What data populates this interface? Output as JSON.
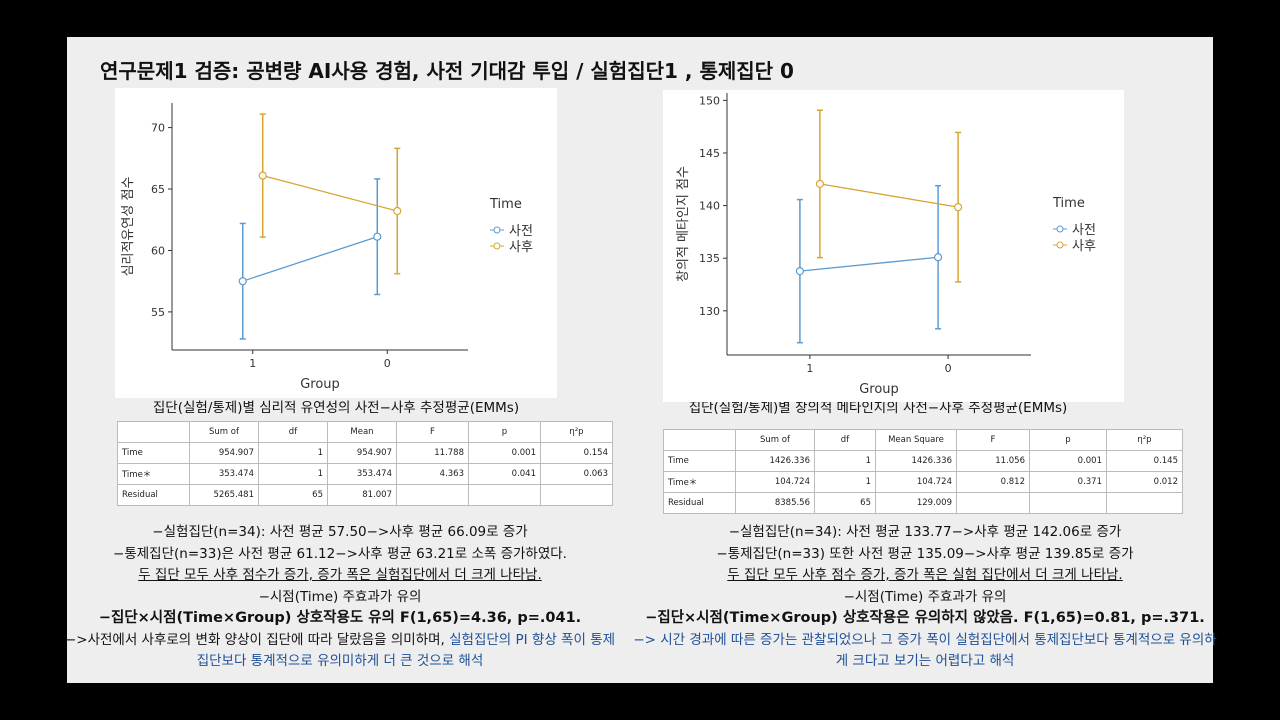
{
  "title": "연구문제1 검증: 공변량 AI사용 경험, 사전 기대감 투입 / 실험집단1 , 통제집단 0",
  "chart_data": [
    {
      "type": "line",
      "ylabel": "심리적유연성 점수",
      "xlabel": "Group",
      "legend_title": "Time",
      "caption": "집단(실험/통제)별 심리적 유연성의 사전−사후 추정평균(EMMs)",
      "categories": [
        "1",
        "0"
      ],
      "ylim": [
        51.9,
        72.0
      ],
      "yticks": [
        55,
        60,
        65,
        70
      ],
      "series": [
        {
          "name": "사전",
          "color": "#5b9bd0",
          "values": [
            57.5,
            61.12
          ],
          "errors": [
            4.7,
            4.7
          ]
        },
        {
          "name": "사후",
          "color": "#d8a533",
          "values": [
            66.09,
            63.21
          ],
          "errors": [
            5.0,
            5.1
          ]
        }
      ]
    },
    {
      "type": "line",
      "ylabel": "창의적 메타인지 점수",
      "xlabel": "Group",
      "legend_title": "Time",
      "caption": "집단(실험/통제)별 창의적 메타인지의 사전−사후 추정평균(EMMs)",
      "categories": [
        "1",
        "0"
      ],
      "ylim": [
        125.8,
        150.7
      ],
      "yticks": [
        130,
        135,
        140,
        145,
        150
      ],
      "series": [
        {
          "name": "사전",
          "color": "#5b9bd0",
          "values": [
            133.77,
            135.09
          ],
          "errors": [
            6.8,
            6.8
          ]
        },
        {
          "name": "사후",
          "color": "#d8a533",
          "values": [
            142.06,
            139.85
          ],
          "errors": [
            7.0,
            7.1
          ]
        }
      ]
    }
  ],
  "tables": [
    {
      "columns": [
        "Sum of",
        "df",
        "Mean",
        "F",
        "p",
        "η²p"
      ],
      "rows": [
        [
          "Time",
          "954.907",
          "1",
          "954.907",
          "11.788",
          "0.001",
          "0.154"
        ],
        [
          "Time＊",
          "353.474",
          "1",
          "353.474",
          "4.363",
          "0.041",
          "0.063"
        ],
        [
          "Residual",
          "5265.481",
          "65",
          "81.007"
        ]
      ]
    },
    {
      "columns": [
        "Sum of",
        "df",
        "Mean Square",
        "F",
        "p",
        "η²p"
      ],
      "rows": [
        [
          "Time",
          "1426.336",
          "1",
          "1426.336",
          "11.056",
          "0.001",
          "0.145"
        ],
        [
          "Time＊",
          "104.724",
          "1",
          "104.724",
          "0.812",
          "0.371",
          "0.012"
        ],
        [
          "Residual",
          "8385.56",
          "65",
          "129.009"
        ]
      ]
    }
  ],
  "notes": [
    [
      {
        "parts": [
          {
            "text": "−실험집단(n=34): 사전 평균 57.50−>사후 평균 66.09로 증가"
          }
        ]
      },
      {
        "parts": [
          {
            "text": "−통제집단(n=33)은 사전 평균 61.12−>사후 평균 63.21로 소폭 증가하였다."
          }
        ]
      },
      {
        "underline": true,
        "parts": [
          {
            "text": "두 집단 모두 사후 점수가 증가, 증가 폭은 실험집단에서 더 크게 나타남."
          }
        ]
      },
      {
        "parts": [
          {
            "text": "−시점(Time) 주효과가 유의"
          }
        ]
      },
      {
        "bold": true,
        "parts": [
          {
            "text": "−집단×시점(Time×Group) 상호작용도 유의 F(1,65)=4.36, p=.041."
          }
        ]
      },
      {
        "parts": [
          {
            "text": "−>사전에서 사후로의 변화 양상이 집단에 따라 달랐음을 의미하며, "
          },
          {
            "text": "실험집단의 PI 향상 폭이 통제집단보다 통계적으로 유의미하게 더 큰 것으로 해석",
            "color": "#1f4f96"
          }
        ]
      }
    ],
    [
      {
        "parts": [
          {
            "text": "−실험집단(n=34): 사전 평균 133.77−>사후 평균 142.06로 증가"
          }
        ]
      },
      {
        "parts": [
          {
            "text": "−통제집단(n=33) 또한 사전 평균 135.09−>사후 평균 139.85로 증가"
          }
        ]
      },
      {
        "underline": true,
        "parts": [
          {
            "text": "두 집단 모두 사후 점수 증가, 증가 폭은 실험 집단에서 더 크게 나타남."
          }
        ]
      },
      {
        "parts": [
          {
            "text": "−시점(Time) 주효과가 유의"
          }
        ]
      },
      {
        "bold": true,
        "parts": [
          {
            "text": "−집단×시점(Time×Group) 상호작용은 유의하지 않았음. F(1,65)=0.81, p=.371."
          }
        ]
      },
      {
        "parts": [
          {
            "text": "−> 시간 경과에 따른 증가는 관찰되었으나 그 증가 폭이 실험집단에서 통제집단보다 통계적으로 유의하게 크다고 보기는 어렵다고 해석",
            "color": "#1f4f96"
          }
        ]
      }
    ]
  ]
}
